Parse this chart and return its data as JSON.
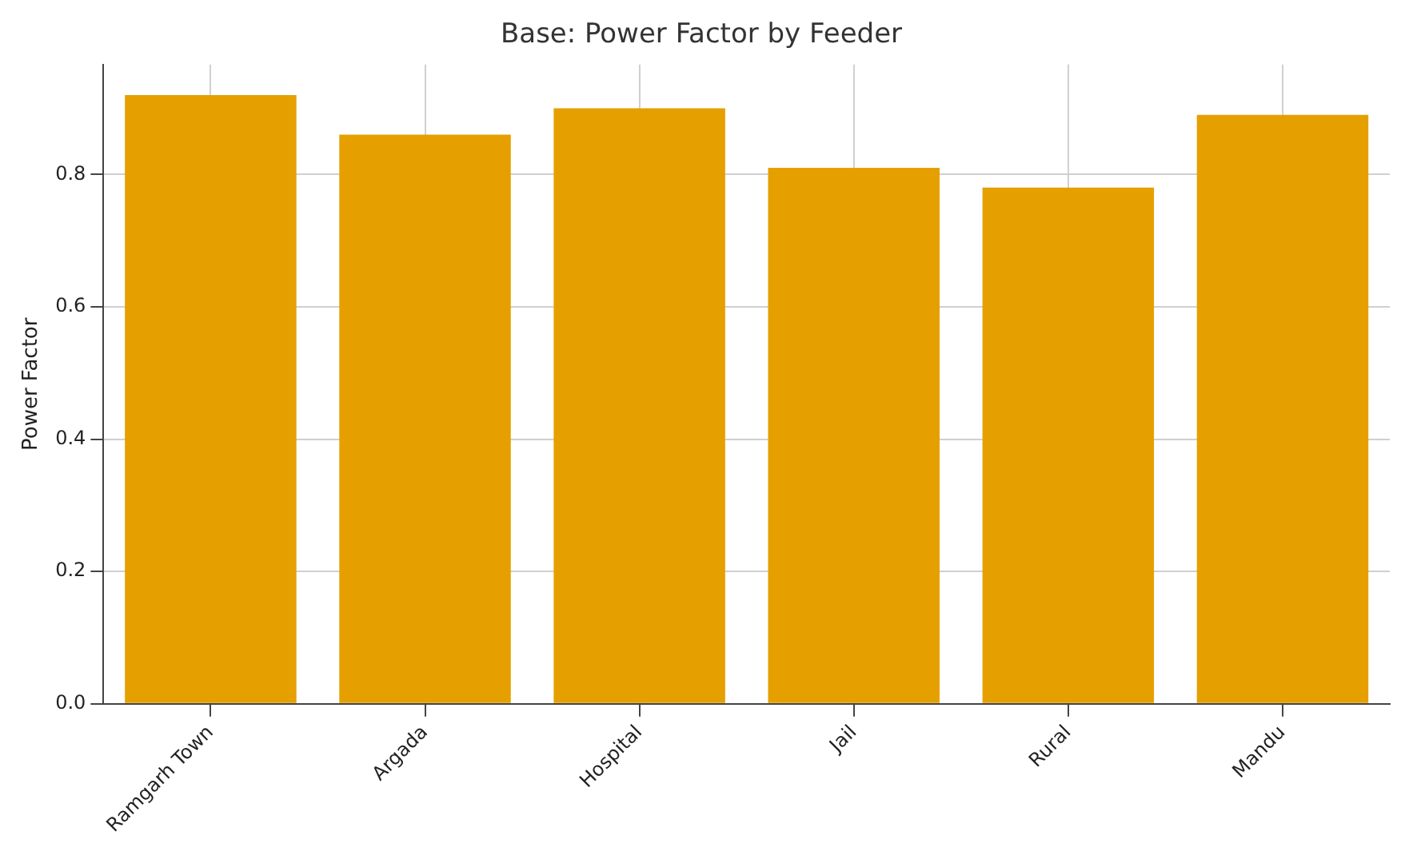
{
  "chart_data": {
    "type": "bar",
    "title": "Base: Power Factor by Feeder",
    "ylabel": "Power Factor",
    "categories": [
      "Ramgarh Town",
      "Argada",
      "Hospital",
      "Jail",
      "Rural",
      "Mandu"
    ],
    "values": [
      0.92,
      0.86,
      0.9,
      0.81,
      0.78,
      0.89
    ],
    "color": "#e5a000",
    "ylim": [
      0,
      0.966
    ],
    "yticks": [
      {
        "value": 0,
        "label": "0.0"
      },
      {
        "value": 0.2,
        "label": "0.2"
      },
      {
        "value": 0.4,
        "label": "0.4"
      },
      {
        "value": 0.6,
        "label": "0.6"
      },
      {
        "value": 0.8,
        "label": "0.8"
      }
    ],
    "grid": true
  }
}
